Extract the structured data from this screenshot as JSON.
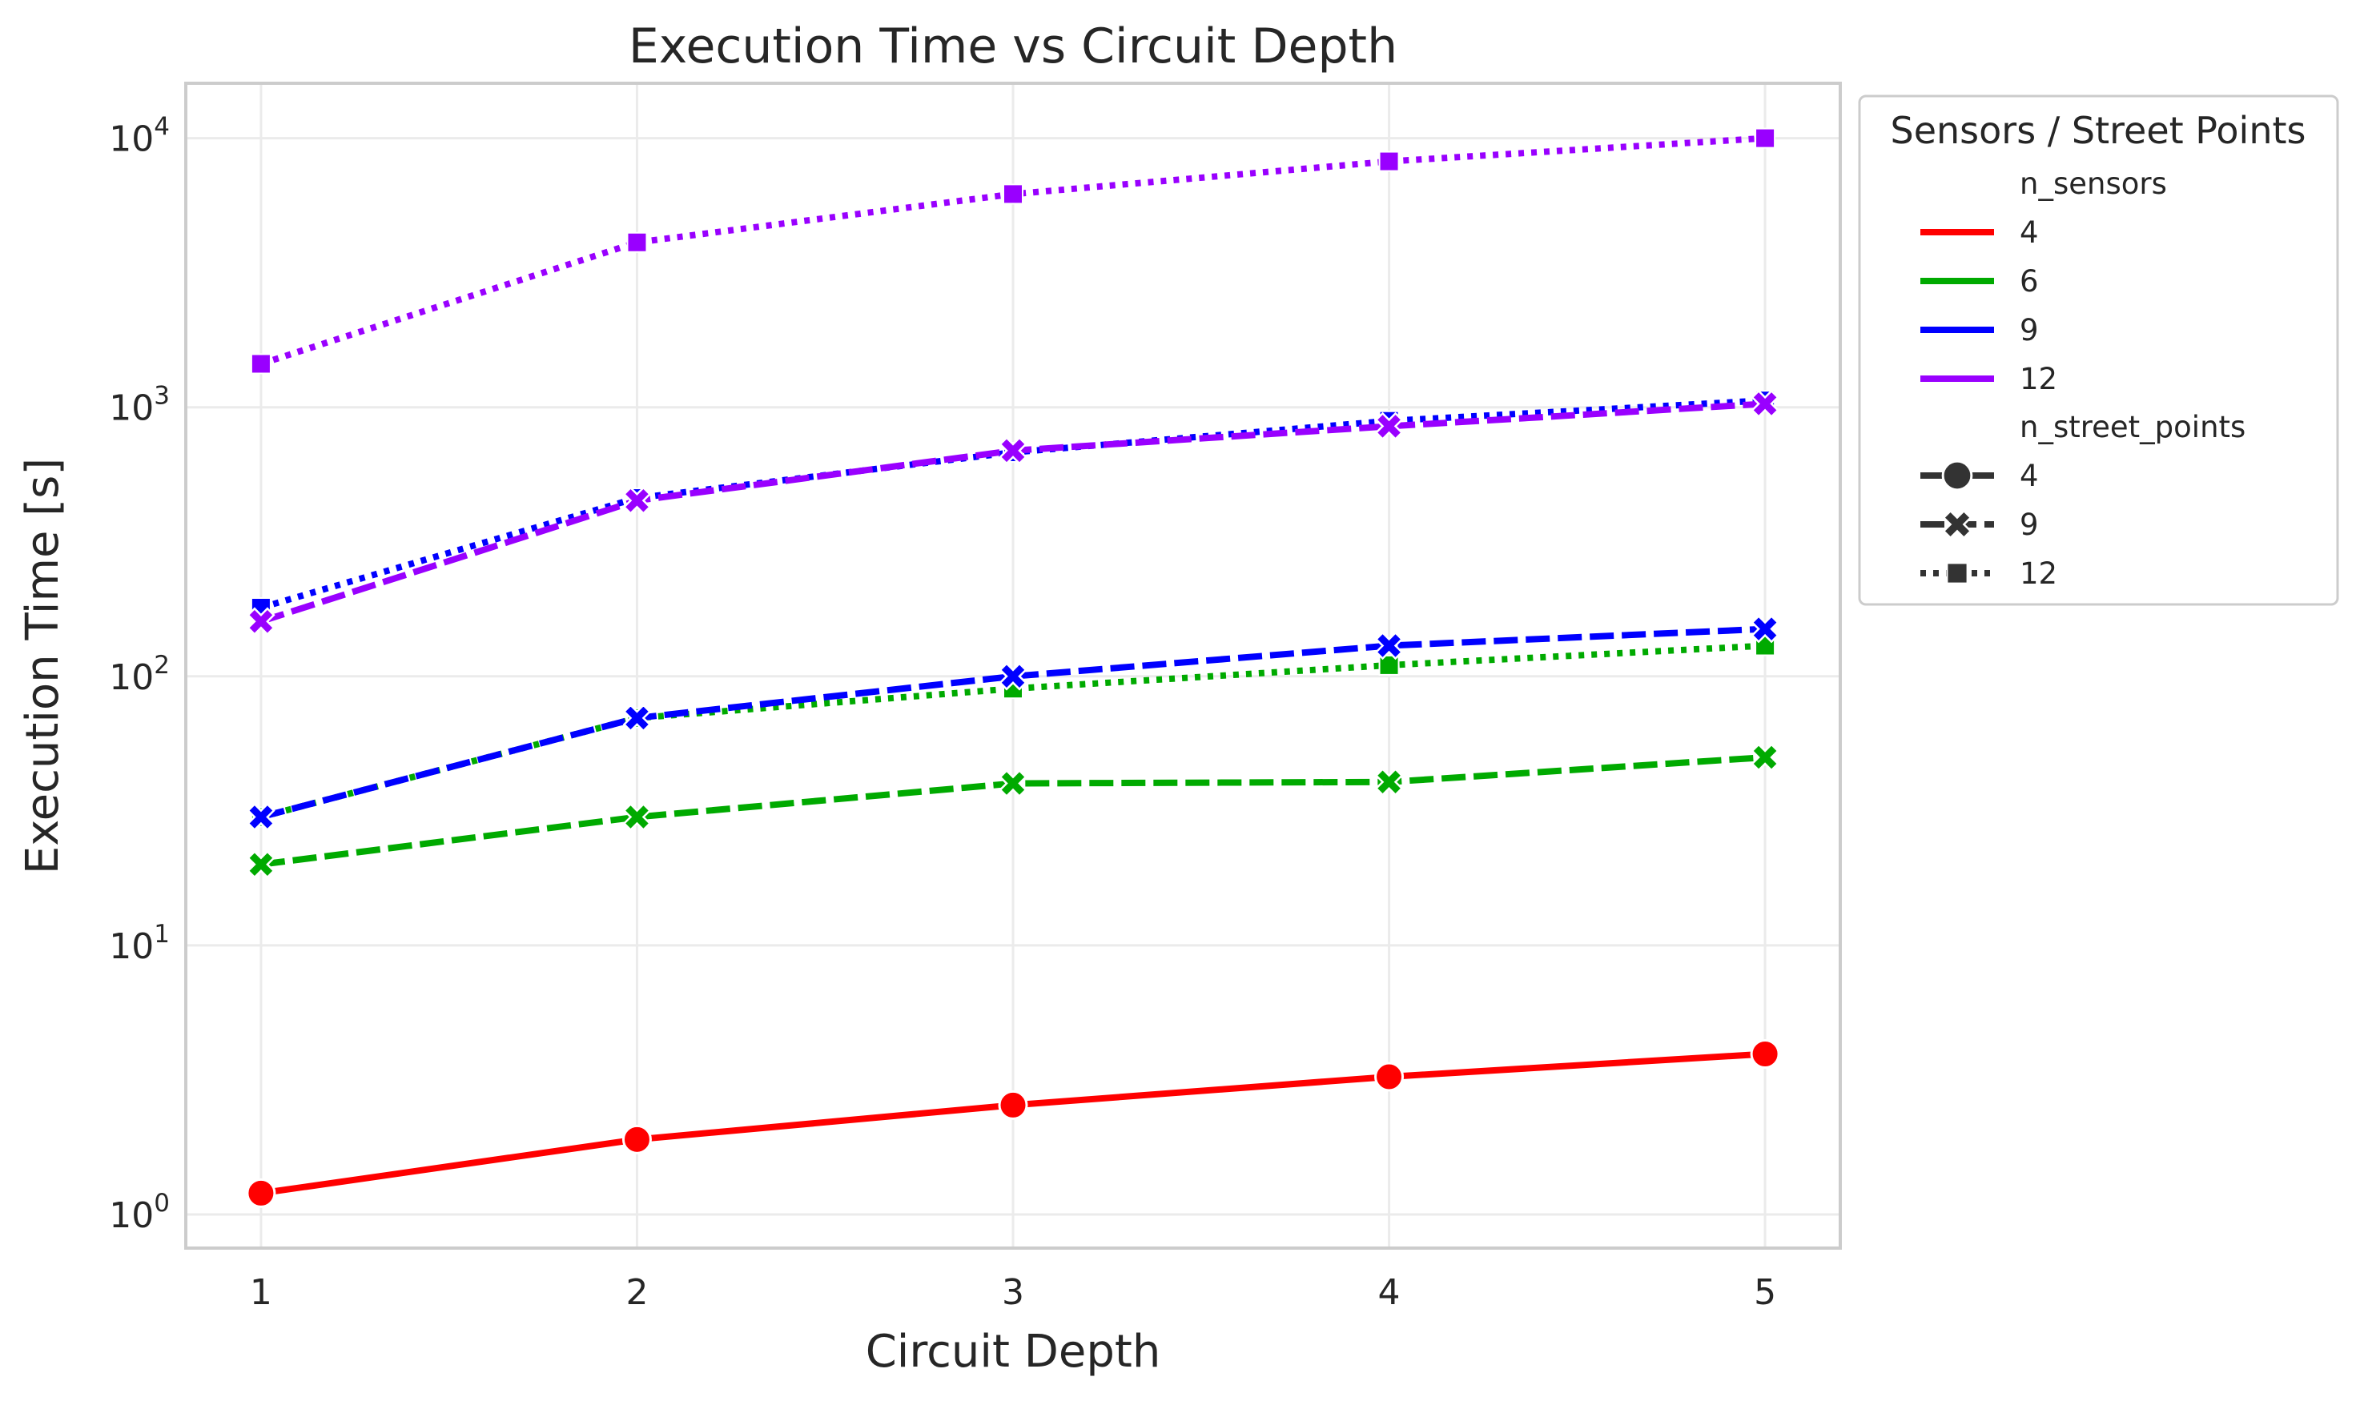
{
  "chart_data": {
    "type": "line",
    "title": "Execution Time vs Circuit Depth",
    "xlabel": "Circuit Depth",
    "ylabel": "Execution Time [s]",
    "x": [
      1,
      2,
      3,
      4,
      5
    ],
    "yscale": "log",
    "ylim": [
      0.75,
      16000
    ],
    "xlim": [
      0.8,
      5.2
    ],
    "y_ticks": [
      {
        "value": 1,
        "base": "10",
        "exp": "0"
      },
      {
        "value": 10,
        "base": "10",
        "exp": "1"
      },
      {
        "value": 100,
        "base": "10",
        "exp": "2"
      },
      {
        "value": 1000,
        "base": "10",
        "exp": "3"
      },
      {
        "value": 10000,
        "base": "10",
        "exp": "4"
      }
    ],
    "x_ticks": [
      "1",
      "2",
      "3",
      "4",
      "5"
    ],
    "grid": true,
    "legend_position": "outside-right",
    "legend": {
      "title": "Sensors / Street Points",
      "hue_title": "n_sensors",
      "hue_entries": [
        {
          "label": "4",
          "color": "#ff0000"
        },
        {
          "label": "6",
          "color": "#00aa00"
        },
        {
          "label": "9",
          "color": "#0000ff"
        },
        {
          "label": "12",
          "color": "#9900ff"
        }
      ],
      "style_title": "n_street_points",
      "style_entries": [
        {
          "label": "4",
          "marker": "circle",
          "dash": "solid"
        },
        {
          "label": "9",
          "marker": "x",
          "dash": "dashed"
        },
        {
          "label": "12",
          "marker": "square",
          "dash": "dotted"
        }
      ]
    },
    "series": [
      {
        "n_sensors": "4",
        "n_street_points": "4",
        "color": "#ff0000",
        "marker": "circle",
        "dash": "solid",
        "values": [
          1.2,
          1.9,
          2.55,
          3.25,
          3.95
        ]
      },
      {
        "n_sensors": "6",
        "n_street_points": "9",
        "color": "#00aa00",
        "marker": "x",
        "dash": "dashed",
        "values": [
          20,
          30,
          40,
          40.5,
          50
        ]
      },
      {
        "n_sensors": "6",
        "n_street_points": "12",
        "color": "#00aa00",
        "marker": "square",
        "dash": "dotted",
        "values": [
          30,
          70,
          90,
          110,
          130
        ]
      },
      {
        "n_sensors": "9",
        "n_street_points": "9",
        "color": "#0000ff",
        "marker": "x",
        "dash": "dashed",
        "values": [
          30,
          70,
          100,
          130,
          150
        ]
      },
      {
        "n_sensors": "9",
        "n_street_points": "12",
        "color": "#0000ff",
        "marker": "square",
        "dash": "dotted",
        "values": [
          180,
          460,
          680,
          890,
          1060
        ]
      },
      {
        "n_sensors": "12",
        "n_street_points": "9",
        "color": "#9900ff",
        "marker": "x",
        "dash": "dashed",
        "values": [
          160,
          450,
          690,
          850,
          1030
        ]
      },
      {
        "n_sensors": "12",
        "n_street_points": "12",
        "color": "#9900ff",
        "marker": "square",
        "dash": "dotted",
        "values": [
          1450,
          4100,
          6200,
          8200,
          10000
        ]
      }
    ]
  }
}
